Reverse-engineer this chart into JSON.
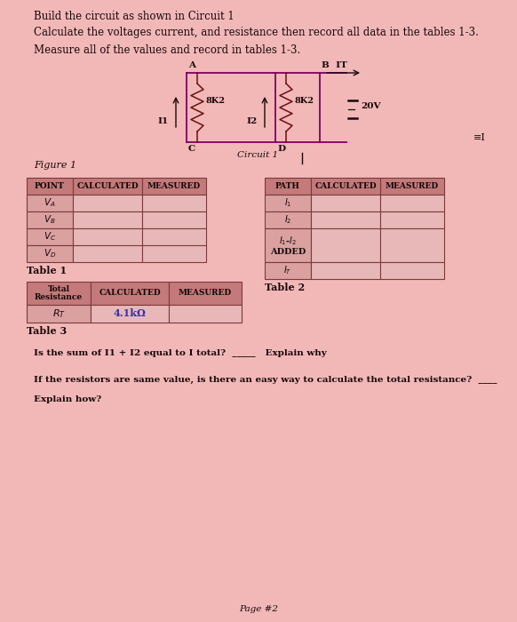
{
  "bg_color": "#f2b8b8",
  "title_line1": "Build the circuit as shown in Circuit 1",
  "title_line2": "Calculate the voltages current, and resistance then record all data in the tables 1-3.",
  "title_line3": "Measure all of the values and record in tables 1-3.",
  "circuit_label": "Circuit 1",
  "figure_label": "Figure 1",
  "table1_header": [
    "POINT",
    "CALCULATED",
    "MEASURED"
  ],
  "table2_header": [
    "PATH",
    "CALCULATED",
    "MEASURED"
  ],
  "table3_header": [
    "Total\nResistance",
    "CALCULATED",
    "MEASURED"
  ],
  "table1_caption": "Table 1",
  "table2_caption": "Table 2",
  "table3_caption": "Table 3",
  "rt_value": "4.1kΩ",
  "question1": "Is the sum of I1 + I2 equal to I total?  _____   Explain why",
  "question2": "If the resistors are same value, is there an easy way to calculate the total resistance?  ____",
  "question3": "Explain how?",
  "header_bg": "#c47a7a",
  "row_label_bg": "#dba0a0",
  "row_empty_bg": "#e8b8b8",
  "table_border": "#7a3a3a",
  "text_dark": "#1a0808",
  "circuit_color": "#800060",
  "resistor_color": "#6b1010",
  "rt_color": "#3030aa",
  "page_text": "Page #2"
}
